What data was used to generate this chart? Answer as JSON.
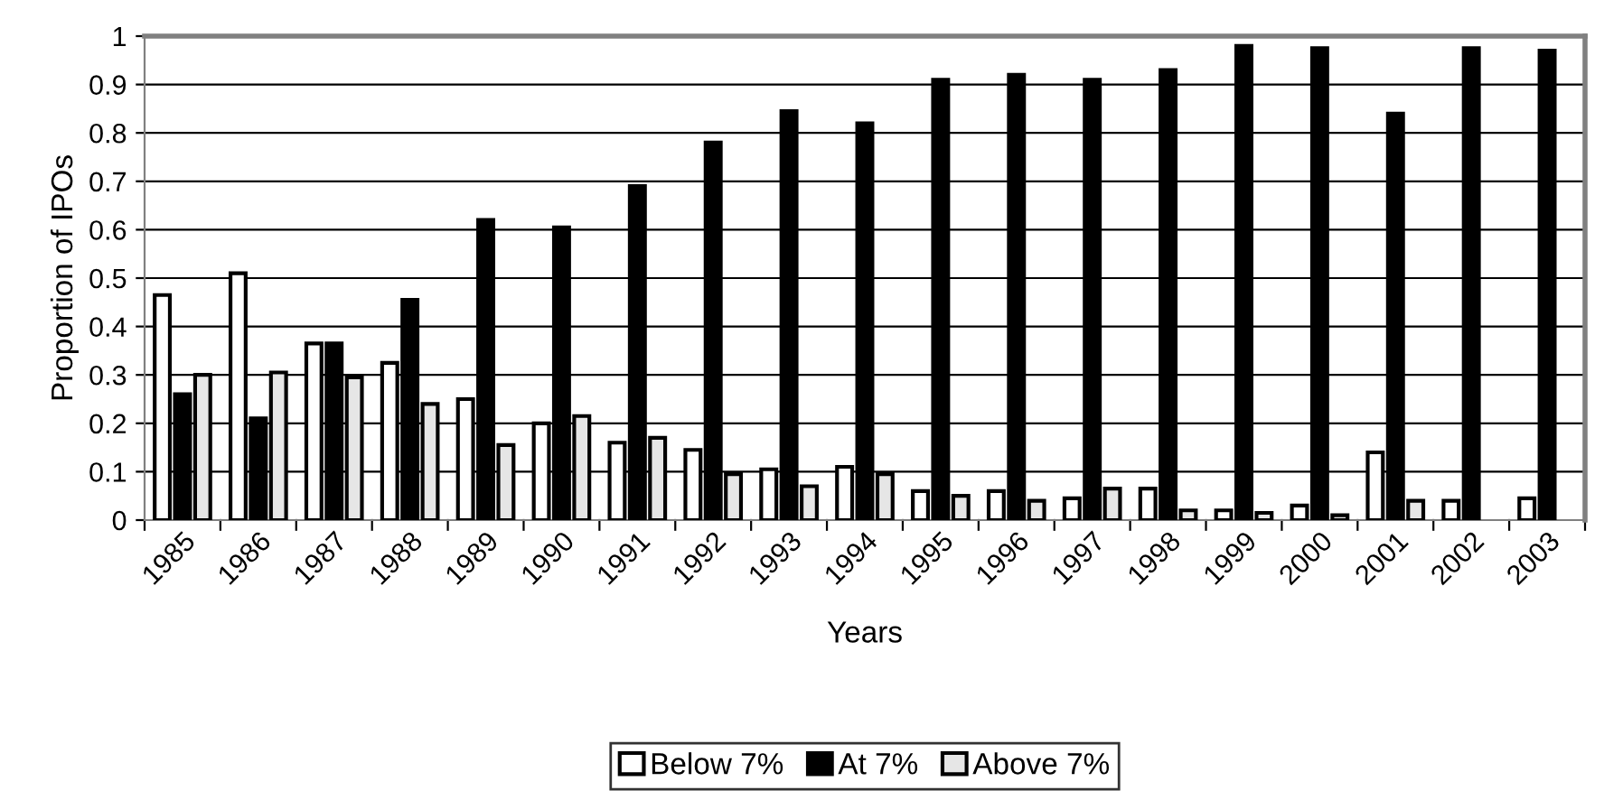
{
  "chart_data": {
    "type": "bar",
    "xlabel": "Years",
    "ylabel": "Proportion of IPOs",
    "categories": [
      "1985",
      "1986",
      "1987",
      "1988",
      "1989",
      "1990",
      "1991",
      "1992",
      "1993",
      "1994",
      "1995",
      "1996",
      "1997",
      "1998",
      "1999",
      "2000",
      "2001",
      "2002",
      "2003"
    ],
    "series": [
      {
        "name": "Below 7%",
        "color": "#ffffff",
        "values": [
          0.465,
          0.51,
          0.365,
          0.325,
          0.25,
          0.2,
          0.16,
          0.145,
          0.105,
          0.11,
          0.06,
          0.06,
          0.045,
          0.065,
          0.02,
          0.03,
          0.14,
          0.04,
          0.045
        ]
      },
      {
        "name": "At 7%",
        "color": "#000000",
        "values": [
          0.26,
          0.21,
          0.365,
          0.455,
          0.62,
          0.605,
          0.69,
          0.78,
          0.845,
          0.82,
          0.91,
          0.92,
          0.91,
          0.93,
          0.98,
          0.975,
          0.84,
          0.975,
          0.97
        ]
      },
      {
        "name": "Above 7%",
        "color": "#e6e6e6",
        "values": [
          0.3,
          0.305,
          0.295,
          0.24,
          0.155,
          0.215,
          0.17,
          0.095,
          0.07,
          0.095,
          0.05,
          0.04,
          0.065,
          0.02,
          0.015,
          0.01,
          0.04,
          null,
          null
        ]
      }
    ],
    "ylim": [
      0,
      1
    ],
    "yticks": [
      0,
      0.1,
      0.2,
      0.3,
      0.4,
      0.5,
      0.6,
      0.7,
      0.8,
      0.9,
      1
    ],
    "grid": "y",
    "legend": "bottom"
  }
}
